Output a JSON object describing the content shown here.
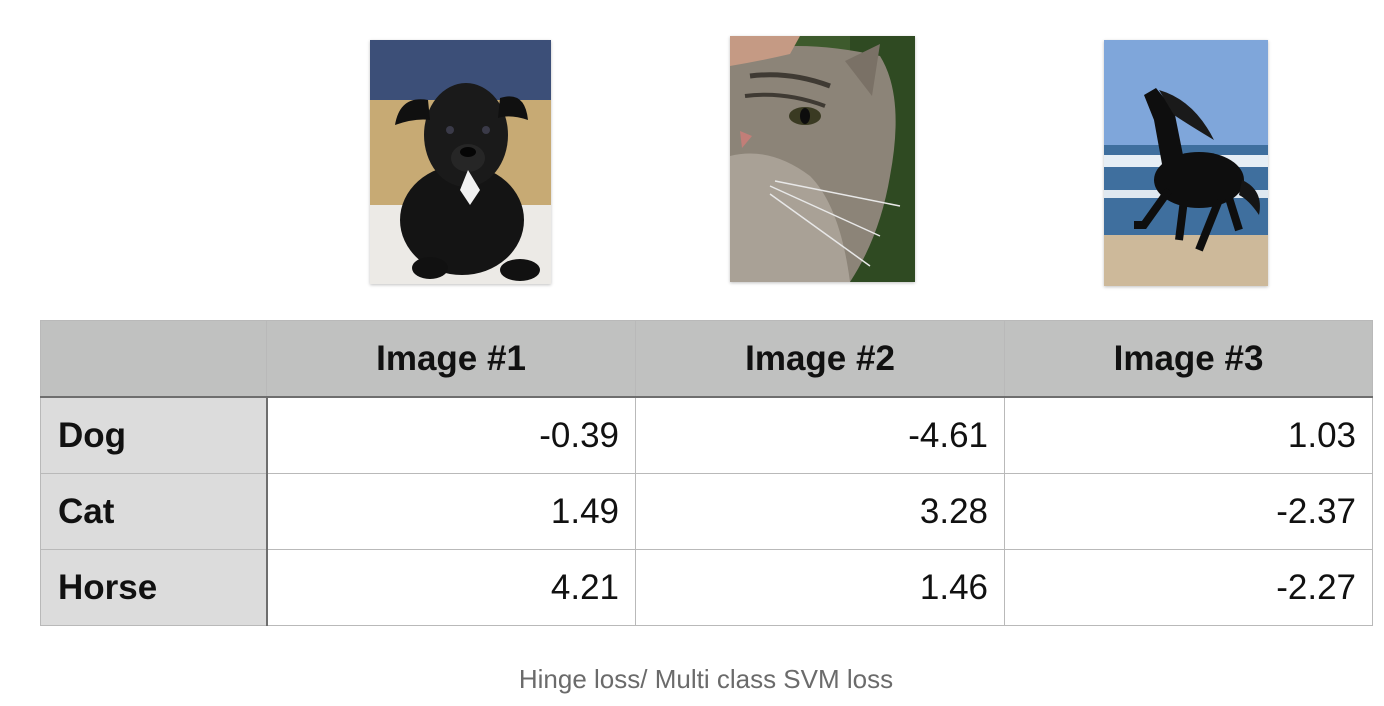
{
  "images": [
    {
      "subject": "dog"
    },
    {
      "subject": "cat"
    },
    {
      "subject": "horse"
    }
  ],
  "table": {
    "corner": "",
    "headers": [
      "Image #1",
      "Image #2",
      "Image #3"
    ],
    "rows": [
      {
        "label": "Dog",
        "values": [
          "-0.39",
          "-4.61",
          "1.03"
        ]
      },
      {
        "label": "Cat",
        "values": [
          "1.49",
          "3.28",
          "-2.37"
        ]
      },
      {
        "label": "Horse",
        "values": [
          "4.21",
          "1.46",
          "-2.27"
        ]
      }
    ]
  },
  "caption": "Hinge loss/ Multi class SVM loss",
  "colors": {
    "header_bg": "#c0c1c0",
    "row_label_bg": "#dcdcdc",
    "caption_text": "#6b6b6b"
  }
}
